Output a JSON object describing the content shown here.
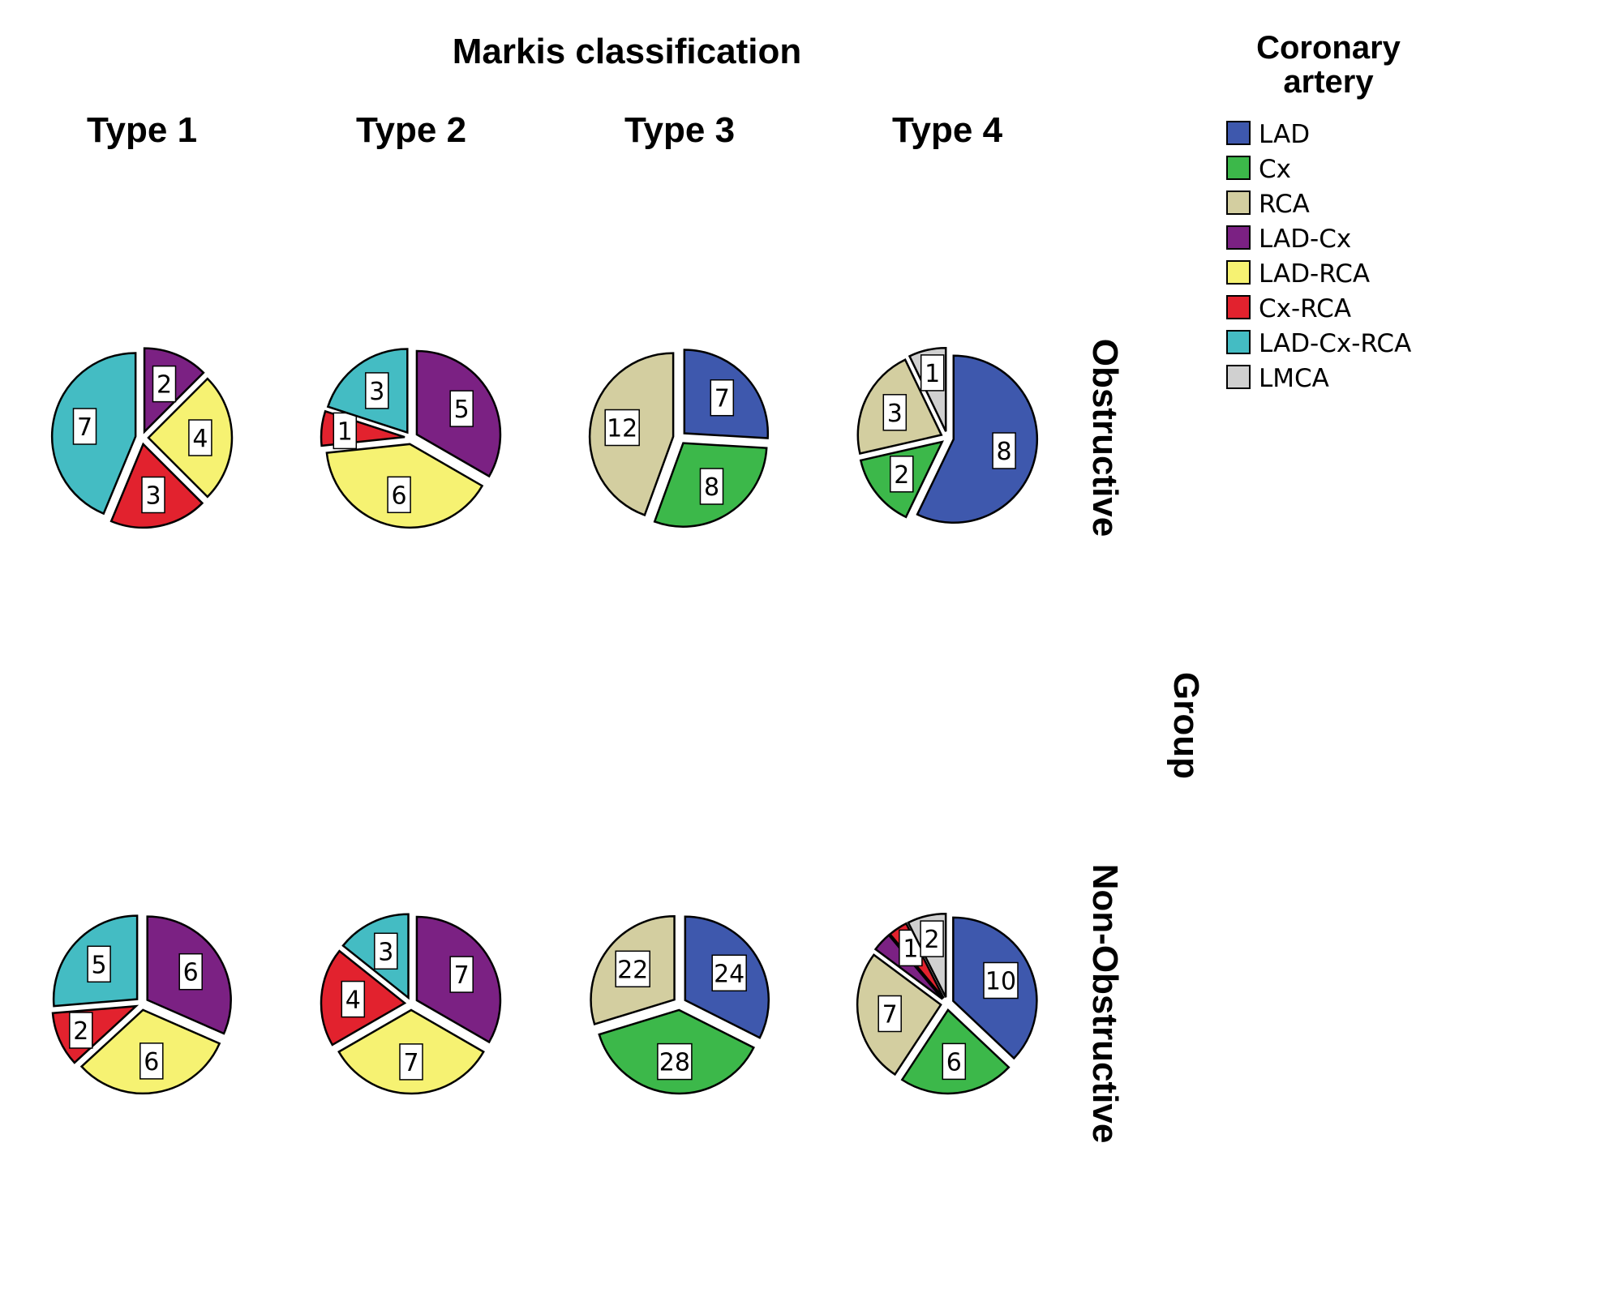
{
  "chart_data": {
    "type": "pie",
    "title": "Markis classification",
    "columns": [
      "Type 1",
      "Type 2",
      "Type 3",
      "Type 4"
    ],
    "rows": [
      "Obstructive",
      "Non-Obstructive"
    ],
    "row_axis_label": "Group",
    "legend": {
      "title": "Coronary artery",
      "placement": "top-right",
      "items": [
        {
          "name": "LAD",
          "color": "#3E58AD"
        },
        {
          "name": "Cx",
          "color": "#3CB84A"
        },
        {
          "name": "RCA",
          "color": "#D3CEA0"
        },
        {
          "name": "LAD-Cx",
          "color": "#7B2183"
        },
        {
          "name": "LAD-RCA",
          "color": "#F6F272"
        },
        {
          "name": "Cx-RCA",
          "color": "#E2222E"
        },
        {
          "name": "LAD-Cx-RCA",
          "color": "#44BCC3"
        },
        {
          "name": "LMCA",
          "color": "#D0D0D0"
        }
      ]
    },
    "pies": [
      {
        "row": "Obstructive",
        "column": "Type 1",
        "slices": [
          {
            "category": "LAD-Cx",
            "value": 2
          },
          {
            "category": "LAD-RCA",
            "value": 4
          },
          {
            "category": "Cx-RCA",
            "value": 3
          },
          {
            "category": "LAD-Cx-RCA",
            "value": 7
          }
        ]
      },
      {
        "row": "Obstructive",
        "column": "Type 2",
        "slices": [
          {
            "category": "LAD-Cx",
            "value": 5
          },
          {
            "category": "LAD-RCA",
            "value": 6
          },
          {
            "category": "Cx-RCA",
            "value": 1
          },
          {
            "category": "LAD-Cx-RCA",
            "value": 3
          }
        ]
      },
      {
        "row": "Obstructive",
        "column": "Type 3",
        "slices": [
          {
            "category": "LAD",
            "value": 7
          },
          {
            "category": "Cx",
            "value": 8
          },
          {
            "category": "RCA",
            "value": 12
          }
        ]
      },
      {
        "row": "Obstructive",
        "column": "Type 4",
        "slices": [
          {
            "category": "LAD",
            "value": 8
          },
          {
            "category": "Cx",
            "value": 2
          },
          {
            "category": "RCA",
            "value": 3
          },
          {
            "category": "LMCA",
            "value": 1
          }
        ]
      },
      {
        "row": "Non-Obstructive",
        "column": "Type 1",
        "slices": [
          {
            "category": "LAD-Cx",
            "value": 6
          },
          {
            "category": "LAD-RCA",
            "value": 6
          },
          {
            "category": "Cx-RCA",
            "value": 2
          },
          {
            "category": "LAD-Cx-RCA",
            "value": 5
          }
        ]
      },
      {
        "row": "Non-Obstructive",
        "column": "Type 2",
        "slices": [
          {
            "category": "LAD-Cx",
            "value": 7
          },
          {
            "category": "LAD-RCA",
            "value": 7
          },
          {
            "category": "Cx-RCA",
            "value": 4
          },
          {
            "category": "LAD-Cx-RCA",
            "value": 3
          }
        ]
      },
      {
        "row": "Non-Obstructive",
        "column": "Type 3",
        "slices": [
          {
            "category": "LAD",
            "value": 24
          },
          {
            "category": "Cx",
            "value": 28
          },
          {
            "category": "RCA",
            "value": 22
          }
        ]
      },
      {
        "row": "Non-Obstructive",
        "column": "Type 4",
        "slices": [
          {
            "category": "LAD",
            "value": 10
          },
          {
            "category": "Cx",
            "value": 6
          },
          {
            "category": "RCA",
            "value": 7
          },
          {
            "category": "LAD-Cx",
            "value": 1,
            "label_hidden": true
          },
          {
            "category": "Cx-RCA",
            "value": 1
          },
          {
            "category": "LMCA",
            "value": 2
          }
        ]
      }
    ]
  }
}
